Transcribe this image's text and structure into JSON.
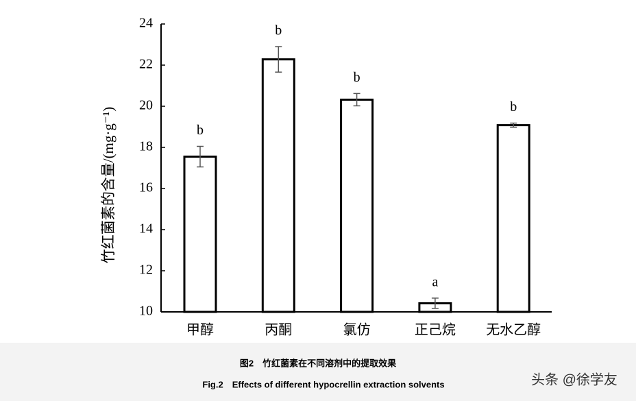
{
  "chart_data": {
    "type": "bar",
    "y_label": "竹红菌素的含量/(mg·g⁻¹)",
    "categories": [
      "甲醇",
      "丙酮",
      "氯仿",
      "正己烷",
      "无水乙醇"
    ],
    "values": [
      17.55,
      22.28,
      20.32,
      10.42,
      19.08
    ],
    "errors": [
      0.5,
      0.62,
      0.3,
      0.25,
      0.1
    ],
    "annotations": [
      "b",
      "b",
      "b",
      "a",
      "b"
    ],
    "color": "#ffffff",
    "edge_color": "#000000",
    "ylim": [
      10,
      24
    ],
    "yticks": [
      10,
      12,
      14,
      16,
      18,
      20,
      22,
      24
    ]
  },
  "caption": {
    "title_cn": "图2　竹红菌素在不同溶剂中的提取效果",
    "title_en": "Fig.2　Effects of different hypocrellin extraction solvents"
  },
  "watermark": "头条 @徐学友"
}
